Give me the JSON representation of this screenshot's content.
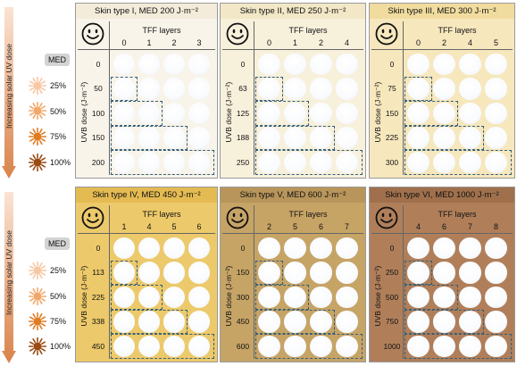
{
  "sidebar": {
    "med_label": "MED",
    "arrow_text": "Increasing solar UV dose",
    "levels": [
      "25%",
      "50%",
      "75%",
      "100%"
    ],
    "sun_colors": [
      "#f7c7a3",
      "#f2a76a",
      "#e07b22",
      "#9a4a12"
    ],
    "arrow_color": "#d9834a"
  },
  "panels": [
    {
      "title": "Skin type I, MED 200  J·m⁻²",
      "tff_label": "TFF layers",
      "uvb_label": "UVB dose (J·m⁻²)",
      "layers": [
        "0",
        "1",
        "2",
        "3"
      ],
      "doses": [
        "0",
        "50",
        "100",
        "150",
        "200"
      ],
      "bg": "#f8f4ea",
      "header_bg": "#f3ecda"
    },
    {
      "title": "Skin type II, MED 250  J·m⁻²",
      "tff_label": "TFF layers",
      "uvb_label": "UVB dose (J·m⁻²)",
      "layers": [
        "0",
        "1",
        "2",
        "4"
      ],
      "doses": [
        "0",
        "63",
        "125",
        "188",
        "250"
      ],
      "bg": "#f7f0db",
      "header_bg": "#f2e7c6"
    },
    {
      "title": "Skin type III, MED 300  J·m⁻²",
      "tff_label": "TFF layers",
      "uvb_label": "UVB dose (J·m⁻²)",
      "layers": [
        "0",
        "2",
        "4",
        "5"
      ],
      "doses": [
        "0",
        "75",
        "150",
        "225",
        "300"
      ],
      "bg": "#f6e7bd",
      "header_bg": "#f1dc9f"
    },
    {
      "title": "Skin type IV, MED 450  J·m⁻²",
      "tff_label": "TFF layers",
      "uvb_label": "UVB dose (J·m⁻²)",
      "layers": [
        "1",
        "4",
        "5",
        "6"
      ],
      "doses": [
        "0",
        "113",
        "225",
        "338",
        "450"
      ],
      "bg": "#ecc96a",
      "header_bg": "#e4bb52"
    },
    {
      "title": "Skin type V, MED 600  J·m⁻²",
      "tff_label": "TFF layers",
      "uvb_label": "UVB dose (J·m⁻²)",
      "layers": [
        "2",
        "5",
        "6",
        "7"
      ],
      "doses": [
        "0",
        "150",
        "300",
        "450",
        "600"
      ],
      "bg": "#c6a466",
      "header_bg": "#b8955a"
    },
    {
      "title": "Skin type VI, MED 1000  J·m⁻²",
      "tff_label": "TFF layers",
      "uvb_label": "UVB dose (J·m⁻²)",
      "layers": [
        "4",
        "6",
        "7",
        "8"
      ],
      "doses": [
        "0",
        "250",
        "500",
        "750",
        "1000"
      ],
      "bg": "#b07f5a",
      "header_bg": "#a0704c"
    }
  ]
}
